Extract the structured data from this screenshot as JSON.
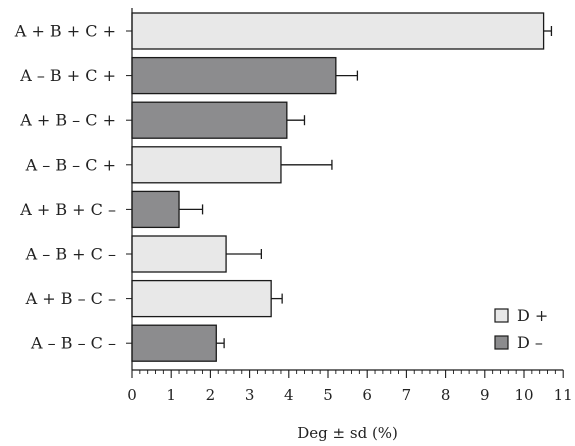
{
  "chart_data": {
    "type": "bar",
    "orientation": "horizontal",
    "xlabel": "Deg ± sd (%)",
    "ylabel": "",
    "title": "",
    "xlim": [
      0,
      11
    ],
    "x_ticks": [
      "0",
      "1",
      "2",
      "3",
      "4",
      "5",
      "6",
      "7",
      "8",
      "9",
      "10",
      "11"
    ],
    "minor_ticks_per_major": 5,
    "grid": false,
    "legend_position": "bottom-right",
    "colors": {
      "D+": "#e8e8e8",
      "D-": "#8c8c8e",
      "edge": "#1a1a1a"
    },
    "legend": [
      {
        "key": "D+",
        "label": "D +"
      },
      {
        "key": "D-",
        "label": "D –"
      }
    ],
    "bars": [
      {
        "label": "A + B + C +",
        "value": 10.5,
        "sd": 0.2,
        "group": "D+"
      },
      {
        "label": "A – B + C +",
        "value": 5.2,
        "sd": 0.55,
        "group": "D-"
      },
      {
        "label": "A + B – C +",
        "value": 3.95,
        "sd": 0.45,
        "group": "D-"
      },
      {
        "label": "A – B – C +",
        "value": 3.8,
        "sd": 1.3,
        "group": "D+"
      },
      {
        "label": "A + B + C –",
        "value": 1.2,
        "sd": 0.6,
        "group": "D-"
      },
      {
        "label": "A – B + C –",
        "value": 2.4,
        "sd": 0.9,
        "group": "D+"
      },
      {
        "label": "A + B – C –",
        "value": 3.55,
        "sd": 0.28,
        "group": "D+"
      },
      {
        "label": "A – B – C –",
        "value": 2.15,
        "sd": 0.2,
        "group": "D-"
      }
    ]
  }
}
